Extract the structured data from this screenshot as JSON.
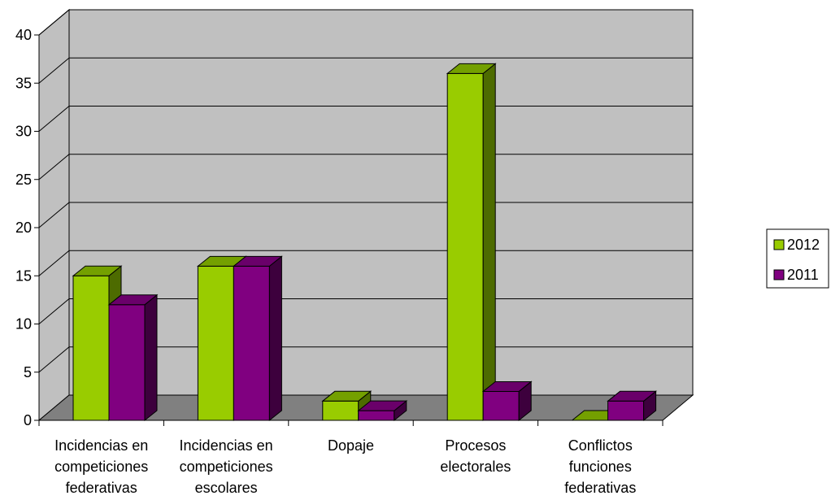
{
  "chart_data": {
    "type": "bar",
    "categories": [
      [
        "Incidencias en",
        "competiciones",
        "federativas"
      ],
      [
        "Incidencias en",
        "competiciones",
        "escolares"
      ],
      [
        "Dopaje"
      ],
      [
        "Procesos",
        "electorales"
      ],
      [
        "Conflictos",
        "funciones",
        "federativas"
      ]
    ],
    "series": [
      {
        "name": "2012",
        "values": [
          15,
          16,
          2,
          36,
          0
        ]
      },
      {
        "name": "2011",
        "values": [
          12,
          16,
          1,
          3,
          2
        ]
      }
    ],
    "ylim": [
      0,
      40
    ],
    "yticks": [
      0,
      5,
      10,
      15,
      20,
      25,
      30,
      35,
      40
    ],
    "grid": true,
    "legend_position": "right",
    "three_d": true
  },
  "colors": {
    "series": [
      {
        "front": "#99cc00",
        "top": "#74a000",
        "side": "#4d6b00"
      },
      {
        "front": "#800080",
        "top": "#6a006a",
        "side": "#3d003d"
      }
    ],
    "wall": "#c0c0c0",
    "floor": "#808080"
  }
}
